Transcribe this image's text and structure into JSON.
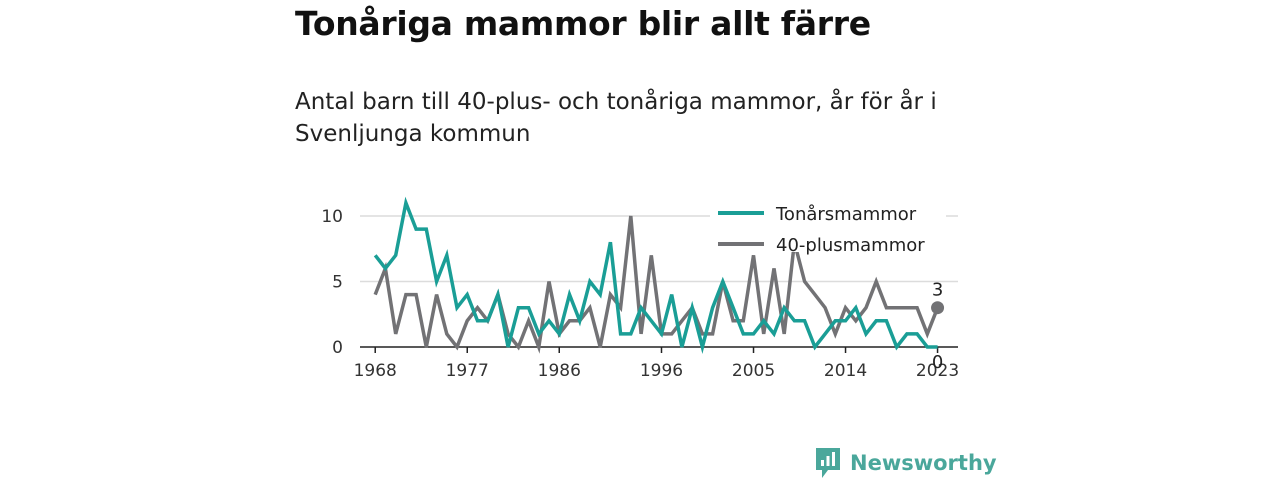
{
  "header": {
    "title": "Tonåriga mammor blir allt färre",
    "subtitle": "Antal barn till 40-plus- och tonåriga mammor, år för år i Svenljunga kommun"
  },
  "brand": {
    "name": "Newsworthy"
  },
  "colors": {
    "teen": "#1a9e96",
    "forty": "#727275",
    "grid": "#dcdcdc",
    "axis": "#222222",
    "brand": "#4aa79b"
  },
  "chart_data": {
    "type": "line",
    "title": "Tonåriga mammor blir allt färre",
    "xlabel": "",
    "ylabel": "",
    "x_ticks": [
      1968,
      1977,
      1986,
      1996,
      2005,
      2014,
      2023
    ],
    "y_ticks": [
      0,
      5,
      10
    ],
    "ylim": [
      0,
      10
    ],
    "xlim": [
      1967,
      2025
    ],
    "grid": "horizontal",
    "legend": "top-right",
    "x": [
      1968,
      1969,
      1970,
      1971,
      1972,
      1973,
      1974,
      1975,
      1976,
      1977,
      1978,
      1979,
      1980,
      1981,
      1982,
      1983,
      1984,
      1985,
      1986,
      1987,
      1988,
      1989,
      1990,
      1991,
      1992,
      1993,
      1994,
      1995,
      1996,
      1997,
      1998,
      1999,
      2000,
      2001,
      2002,
      2003,
      2004,
      2005,
      2006,
      2007,
      2008,
      2009,
      2010,
      2011,
      2012,
      2013,
      2014,
      2015,
      2016,
      2017,
      2018,
      2019,
      2020,
      2021,
      2022,
      2023
    ],
    "series": [
      {
        "name": "Tonårsmammor",
        "end_label": "0",
        "values": [
          7,
          6,
          7,
          11,
          9,
          9,
          5,
          7,
          3,
          4,
          2,
          2,
          4,
          0,
          3,
          3,
          1,
          2,
          1,
          4,
          2,
          5,
          4,
          8,
          1,
          1,
          3,
          2,
          1,
          4,
          0,
          3,
          0,
          3,
          5,
          3,
          1,
          1,
          2,
          1,
          3,
          2,
          2,
          0,
          1,
          2,
          2,
          3,
          1,
          2,
          2,
          0,
          1,
          1,
          0,
          0
        ]
      },
      {
        "name": "40-plusmammor",
        "end_label": "3",
        "values": [
          4,
          6,
          1,
          4,
          4,
          0,
          4,
          1,
          0,
          2,
          3,
          2,
          4,
          1,
          0,
          2,
          0,
          5,
          1,
          2,
          2,
          3,
          0,
          4,
          3,
          10,
          1,
          7,
          1,
          1,
          2,
          3,
          1,
          1,
          5,
          2,
          2,
          7,
          1,
          6,
          1,
          8,
          5,
          4,
          3,
          1,
          3,
          2,
          3,
          5,
          3,
          3,
          3,
          3,
          1,
          3
        ]
      }
    ]
  }
}
